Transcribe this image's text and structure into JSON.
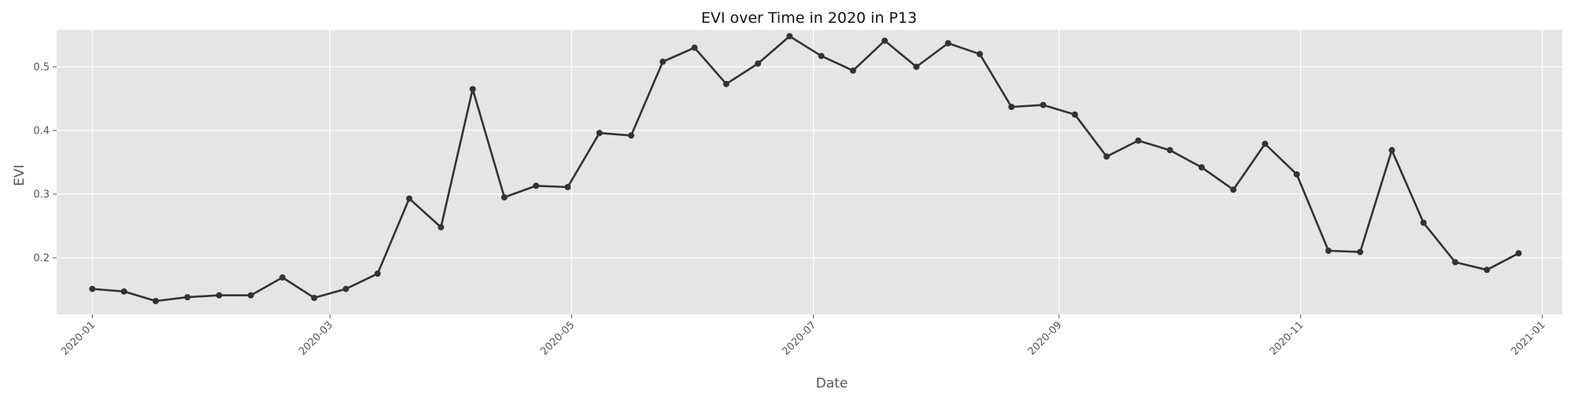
{
  "chart_data": {
    "type": "line",
    "title": "EVI over Time in 2020 in P13",
    "xlabel": "Date",
    "ylabel": "EVI",
    "xlim": [
      "2019-12-23",
      "2021-01-06"
    ],
    "ylim": [
      0.111,
      0.558
    ],
    "grid": true,
    "x_ticks": [
      "2020-01",
      "2020-03",
      "2020-05",
      "2020-07",
      "2020-09",
      "2020-11",
      "2021-01"
    ],
    "y_ticks": [
      0.2,
      0.3,
      0.4,
      0.5
    ],
    "colors": {
      "line": "#333333",
      "background": "#e5e5e5",
      "grid": "#ffffff"
    },
    "series": [
      {
        "x": [
          "2020-01-01",
          "2020-01-09",
          "2020-01-17",
          "2020-01-25",
          "2020-02-02",
          "2020-02-10",
          "2020-02-18",
          "2020-02-26",
          "2020-03-05",
          "2020-03-13",
          "2020-03-21",
          "2020-03-29",
          "2020-04-06",
          "2020-04-14",
          "2020-04-22",
          "2020-04-30",
          "2020-05-08",
          "2020-05-16",
          "2020-05-24",
          "2020-06-01",
          "2020-06-09",
          "2020-06-17",
          "2020-06-25",
          "2020-07-03",
          "2020-07-11",
          "2020-07-19",
          "2020-07-27",
          "2020-08-04",
          "2020-08-12",
          "2020-08-20",
          "2020-08-28",
          "2020-09-05",
          "2020-09-13",
          "2020-09-21",
          "2020-09-29",
          "2020-10-07",
          "2020-10-15",
          "2020-10-23",
          "2020-10-31",
          "2020-11-08",
          "2020-11-16",
          "2020-11-24",
          "2020-12-02",
          "2020-12-10",
          "2020-12-18",
          "2020-12-26"
        ],
        "values": [
          0.151,
          0.147,
          0.132,
          0.138,
          0.141,
          0.141,
          0.169,
          0.137,
          0.151,
          0.175,
          0.293,
          0.248,
          0.465,
          0.295,
          0.313,
          0.311,
          0.396,
          0.392,
          0.508,
          0.53,
          0.473,
          0.505,
          0.548,
          0.517,
          0.494,
          0.541,
          0.5,
          0.537,
          0.52,
          0.437,
          0.44,
          0.425,
          0.359,
          0.384,
          0.369,
          0.342,
          0.307,
          0.379,
          0.331,
          0.211,
          0.209,
          0.369,
          0.255,
          0.193,
          0.181,
          0.207
        ]
      }
    ]
  }
}
